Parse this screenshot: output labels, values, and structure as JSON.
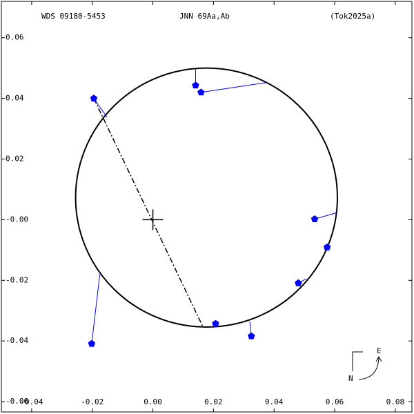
{
  "chart_data": {
    "type": "scatter",
    "header": {
      "left": "WDS 09180-5453",
      "center": "JNN  69Aa,Ab",
      "right": "(Tok2025a)"
    },
    "compass": {
      "east": "E",
      "north": "N"
    },
    "xlim": [
      -0.05,
      0.0855
    ],
    "ylim": [
      -0.0634,
      0.072
    ],
    "xticks": [
      -0.04,
      -0.02,
      {
        "value": 0,
        "label": "0.00"
      },
      0.02,
      0.04,
      0.06,
      0.08
    ],
    "yticks": [
      -0.06,
      -0.04,
      -0.02,
      {
        "value": 0,
        "label": "-0.00"
      },
      0.02,
      0.04,
      0.06
    ],
    "orbit": {
      "center": [
        0.0177,
        0.0073
      ],
      "radii": [
        0.0432,
        0.0427
      ],
      "color": "#000000"
    },
    "observations": {
      "color": "#0000ff",
      "x": [
        -0.0195,
        0.0141,
        0.0159,
        0.0534,
        0.0575,
        0.048,
        0.0207,
        0.0325,
        -0.0202
      ],
      "y": [
        0.04,
        0.0443,
        0.042,
        0.0002,
        -0.0091,
        -0.0209,
        -0.0343,
        -0.0384,
        -0.0409
      ]
    },
    "residual_ends": {
      "x": [
        -0.0152,
        0.0141,
        0.0373,
        0.0607,
        0.0568,
        0.0507,
        0.0205,
        0.032,
        -0.0175
      ],
      "y": [
        0.0339,
        0.0498,
        0.0452,
        0.0023,
        -0.01,
        -0.0195,
        -0.0355,
        -0.0336,
        -0.018
      ]
    },
    "node_line": {
      "x": [
        -0.0195,
        0.0166
      ],
      "y": [
        0.04,
        -0.0355
      ]
    }
  }
}
